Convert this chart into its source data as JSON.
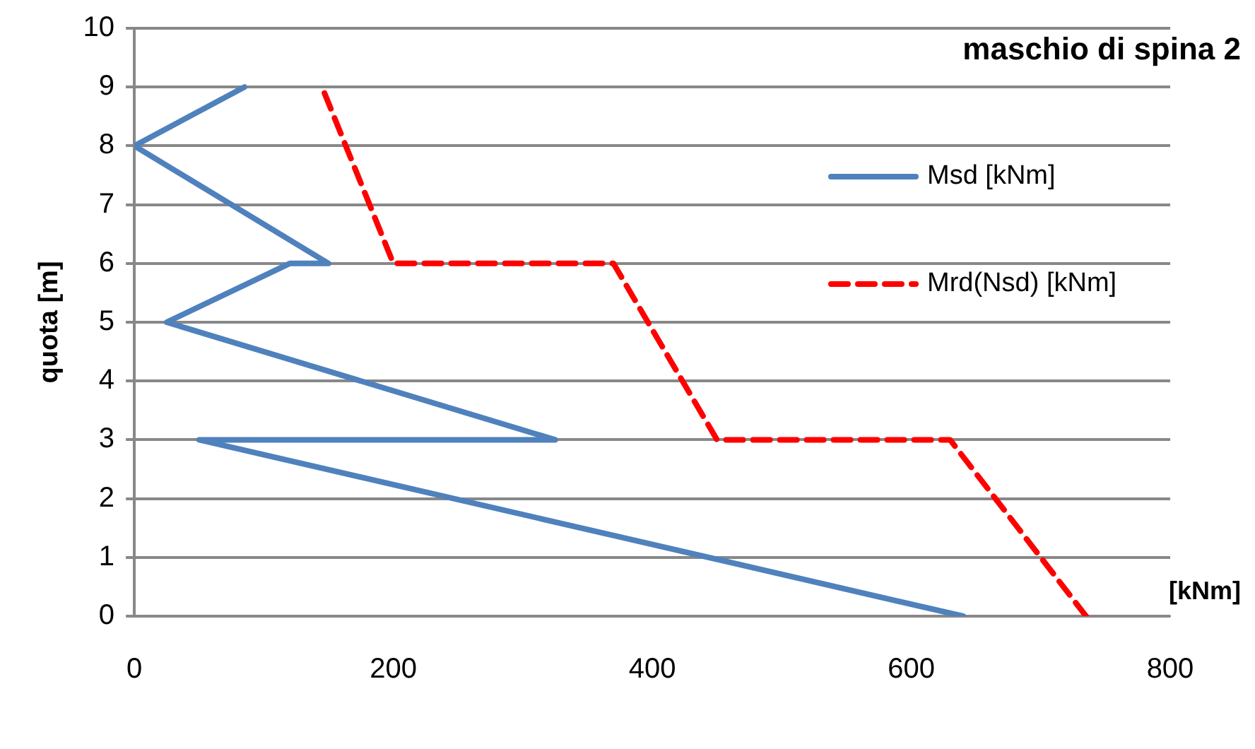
{
  "chart_data": {
    "type": "line",
    "title": "maschio di spina 2",
    "xlabel": "[kNm]",
    "ylabel": "quota [m]",
    "xlim": [
      0,
      800
    ],
    "xticks": [
      0,
      200,
      400,
      600,
      800
    ],
    "ylim": [
      0,
      10
    ],
    "yticks": [
      0,
      1,
      2,
      3,
      4,
      5,
      6,
      7,
      8,
      9,
      10
    ],
    "grid": "y",
    "legend": "right",
    "marker": "none",
    "series": [
      {
        "name": "Msd [kNm]",
        "color": "#4f81bd",
        "line_style": "solid",
        "x": [
          640,
          50,
          325,
          25,
          120,
          150,
          0,
          85
        ],
        "values": [
          0,
          3,
          3,
          5,
          6,
          6,
          8,
          9
        ]
      },
      {
        "name": "Mrd(Nsd) [kNm]",
        "color": "#ff0000",
        "line_style": "dashed",
        "x": [
          735,
          630,
          450,
          370,
          200,
          145
        ],
        "values": [
          0,
          3,
          3,
          6,
          6,
          9
        ]
      }
    ]
  }
}
